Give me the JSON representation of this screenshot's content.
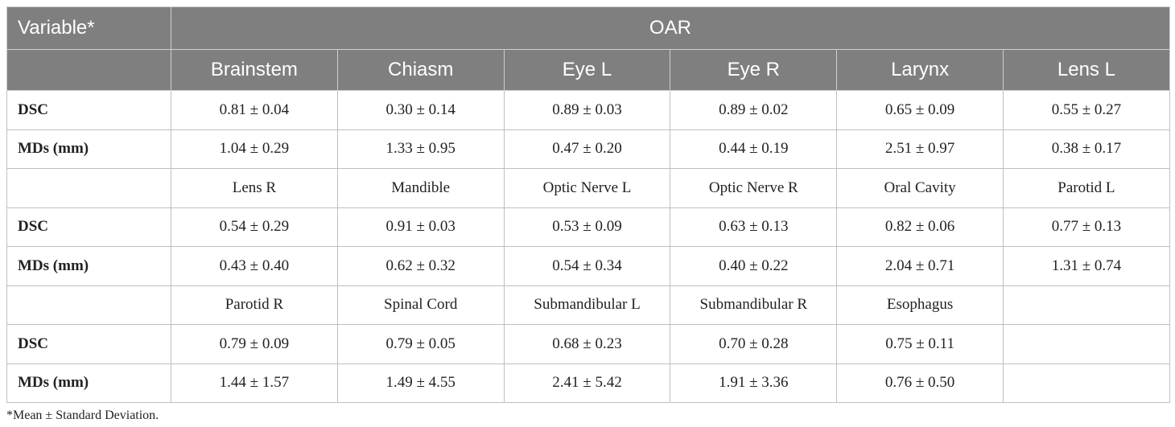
{
  "header": {
    "variable_label": "Variable*",
    "group_label": "OAR",
    "columns": [
      "Brainstem",
      "Chiasm",
      "Eye L",
      "Eye R",
      "Larynx",
      "Lens L"
    ]
  },
  "rows": [
    {
      "label": "DSC",
      "cells": [
        "0.81 ± 0.04",
        "0.30 ± 0.14",
        "0.89 ± 0.03",
        "0.89 ± 0.02",
        "0.65 ± 0.09",
        "0.55 ± 0.27"
      ]
    },
    {
      "label": "MDs (mm)",
      "cells": [
        "1.04 ± 0.29",
        "1.33 ± 0.95",
        "0.47 ± 0.20",
        "0.44 ± 0.19",
        "2.51 ± 0.97",
        "0.38 ± 0.17"
      ]
    },
    {
      "label": "",
      "cells": [
        "Lens R",
        "Mandible",
        "Optic Nerve L",
        "Optic Nerve R",
        "Oral Cavity",
        "Parotid L"
      ]
    },
    {
      "label": "DSC",
      "cells": [
        "0.54 ± 0.29",
        "0.91 ± 0.03",
        "0.53 ± 0.09",
        "0.63 ± 0.13",
        "0.82 ± 0.06",
        "0.77 ± 0.13"
      ]
    },
    {
      "label": "MDs (mm)",
      "cells": [
        "0.43 ± 0.40",
        "0.62 ± 0.32",
        "0.54 ± 0.34",
        "0.40 ± 0.22",
        "2.04 ± 0.71",
        "1.31 ± 0.74"
      ]
    },
    {
      "label": "",
      "cells": [
        "Parotid R",
        "Spinal Cord",
        "Submandibular L",
        "Submandibular R",
        "Esophagus",
        ""
      ]
    },
    {
      "label": "DSC",
      "cells": [
        "0.79 ± 0.09",
        "0.79 ± 0.05",
        "0.68 ± 0.23",
        "0.70 ± 0.28",
        "0.75 ± 0.11",
        ""
      ]
    },
    {
      "label": "MDs (mm)",
      "cells": [
        "1.44 ± 1.57",
        "1.49 ± 4.55",
        "2.41 ± 5.42",
        "1.91 ± 3.36",
        "0.76 ± 0.50",
        ""
      ]
    }
  ],
  "footnote": "*Mean ± Standard Deviation.",
  "colors": {
    "header_bg": "#7f7f7f",
    "header_text": "#ffffff",
    "border": "#bfbfbf"
  }
}
